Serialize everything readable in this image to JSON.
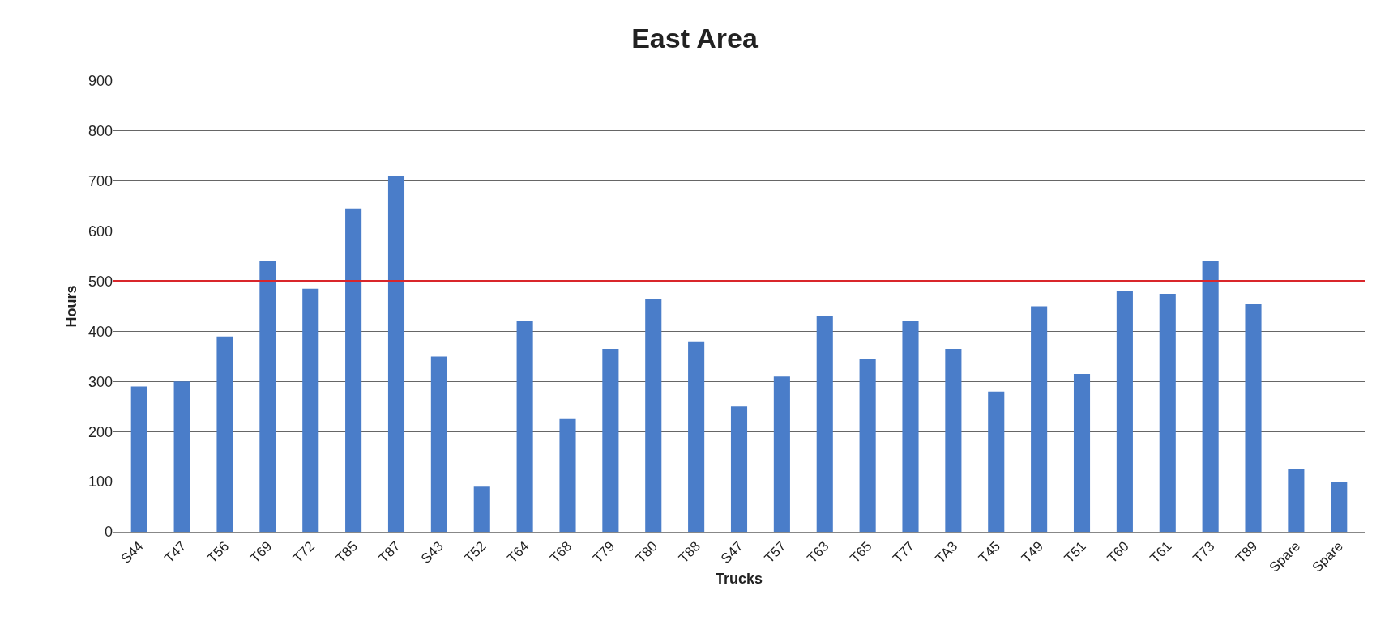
{
  "chart_data": {
    "type": "bar",
    "title": "East Area",
    "xlabel": "Trucks",
    "ylabel": "Hours",
    "categories": [
      "S44",
      "T47",
      "T56",
      "T69",
      "T72",
      "T85",
      "T87",
      "S43",
      "T52",
      "T64",
      "T68",
      "T79",
      "T80",
      "T88",
      "S47",
      "T57",
      "T63",
      "T65",
      "T77",
      "TA3",
      "T45",
      "T49",
      "T51",
      "T60",
      "T61",
      "T73",
      "T89",
      "Spare",
      "Spare"
    ],
    "values": [
      290,
      300,
      390,
      540,
      485,
      645,
      710,
      350,
      90,
      420,
      225,
      365,
      465,
      380,
      250,
      310,
      430,
      345,
      420,
      365,
      280,
      450,
      315,
      480,
      475,
      540,
      455,
      125,
      100
    ],
    "color": "#4a7dc9",
    "ylim": [
      0,
      900
    ],
    "yticks": [
      0,
      100,
      200,
      300,
      400,
      500,
      600,
      700,
      800,
      900
    ],
    "grid": "y",
    "legend": false,
    "ref_lines": [
      {
        "axis": "y",
        "value": 500,
        "color": "#d9262b"
      }
    ]
  }
}
